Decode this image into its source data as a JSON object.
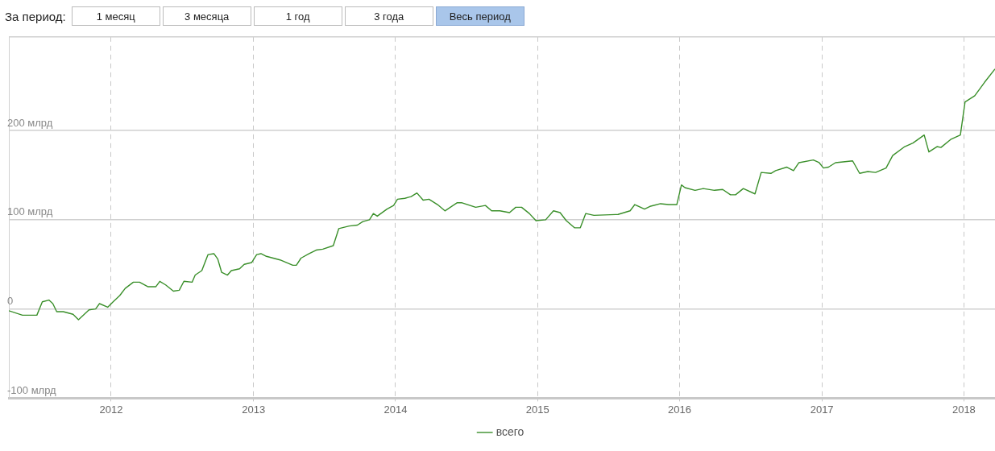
{
  "chart_data": {
    "type": "line",
    "annotations": [
      "За период:",
      "1 месяц",
      "3 месяца",
      "1 год",
      "3 года",
      "Весь период"
    ],
    "xlim": [
      "2011-04-13",
      "2018-03-22"
    ],
    "xticks": [
      "2012",
      "2013",
      "2014",
      "2015",
      "2016",
      "2017",
      "2018"
    ],
    "ylim": [
      -100,
      305
    ],
    "yticks": [
      {
        "value": -100,
        "label": "-100 млрд"
      },
      {
        "value": 0,
        "label": "0"
      },
      {
        "value": 100,
        "label": "100 млрд"
      },
      {
        "value": 200,
        "label": "200 млрд"
      }
    ],
    "grid": true,
    "legend": "bottom",
    "marker": "none",
    "line_style": "solid",
    "series": [
      {
        "name": "всего",
        "color": "#3a8f2a",
        "x": [
          "2011-04-13",
          "2011-05-18",
          "2011-06-24",
          "2011-07-08",
          "2011-07-25",
          "2011-08-04",
          "2011-08-14",
          "2011-08-31",
          "2011-09-25",
          "2011-10-09",
          "2011-11-05",
          "2011-11-22",
          "2011-12-02",
          "2011-12-23",
          "2012-01-06",
          "2012-01-23",
          "2012-02-06",
          "2012-02-27",
          "2012-03-14",
          "2012-04-04",
          "2012-04-25",
          "2012-05-05",
          "2012-05-20",
          "2012-06-09",
          "2012-06-24",
          "2012-07-06",
          "2012-07-27",
          "2012-08-04",
          "2012-08-21",
          "2012-09-06",
          "2012-09-21",
          "2012-10-01",
          "2012-10-11",
          "2012-10-26",
          "2012-11-05",
          "2012-11-26",
          "2012-12-08",
          "2012-12-27",
          "2013-01-09",
          "2013-01-20",
          "2013-02-03",
          "2013-03-10",
          "2013-04-12",
          "2013-04-21",
          "2013-05-03",
          "2013-05-24",
          "2013-06-11",
          "2013-06-28",
          "2013-07-25",
          "2013-08-08",
          "2013-09-04",
          "2013-09-25",
          "2013-10-09",
          "2013-10-26",
          "2013-11-05",
          "2013-11-15",
          "2013-12-10",
          "2013-12-27",
          "2014-01-06",
          "2014-01-25",
          "2014-02-10",
          "2014-02-25",
          "2014-03-13",
          "2014-03-28",
          "2014-04-19",
          "2014-05-08",
          "2014-06-08",
          "2014-06-21",
          "2014-07-26",
          "2014-08-20",
          "2014-09-05",
          "2014-09-26",
          "2014-10-21",
          "2014-11-06",
          "2014-11-21",
          "2014-12-11",
          "2014-12-28",
          "2015-01-22",
          "2015-02-11",
          "2015-02-28",
          "2015-03-16",
          "2015-04-06",
          "2015-04-21",
          "2015-05-05",
          "2015-05-26",
          "2015-07-27",
          "2015-08-27",
          "2015-09-08",
          "2015-10-03",
          "2015-10-17",
          "2015-11-13",
          "2015-12-04",
          "2015-12-25",
          "2016-01-06",
          "2016-01-15",
          "2016-02-10",
          "2016-03-02",
          "2016-03-31",
          "2016-04-21",
          "2016-05-11",
          "2016-05-24",
          "2016-06-13",
          "2016-07-13",
          "2016-07-29",
          "2016-08-23",
          "2016-09-04",
          "2016-10-03",
          "2016-10-20",
          "2016-11-03",
          "2016-12-10",
          "2016-12-25",
          "2017-01-05",
          "2017-01-18",
          "2017-02-05",
          "2017-03-21",
          "2017-04-08",
          "2017-04-29",
          "2017-05-19",
          "2017-06-15",
          "2017-07-02",
          "2017-08-02",
          "2017-08-23",
          "2017-09-21",
          "2017-10-03",
          "2017-10-24",
          "2017-11-03",
          "2017-11-28",
          "2017-12-23",
          "2018-01-04",
          "2018-01-29",
          "2018-02-23",
          "2018-03-22"
        ],
        "values": [
          -2,
          -7,
          -7,
          8,
          10,
          6,
          -3,
          -3,
          -6,
          -12,
          -1,
          0,
          6,
          2,
          8,
          15,
          23,
          30,
          30,
          25,
          25,
          31,
          27,
          20,
          21,
          31,
          30,
          38,
          43,
          61,
          62,
          56,
          41,
          38,
          43,
          45,
          50,
          52,
          61,
          62,
          59,
          55,
          49,
          49,
          57,
          62,
          66,
          67,
          71,
          90,
          93,
          94,
          98,
          100,
          107,
          104,
          112,
          116,
          123,
          124,
          126,
          130,
          122,
          123,
          117,
          110,
          119,
          119,
          114,
          116,
          110,
          110,
          108,
          114,
          114,
          107,
          99,
          100,
          110,
          108,
          99,
          91,
          91,
          107,
          105,
          106,
          110,
          117,
          112,
          115,
          118,
          117,
          117,
          139,
          136,
          133,
          135,
          133,
          134,
          128,
          128,
          135,
          129,
          153,
          152,
          155,
          159,
          155,
          164,
          167,
          164,
          158,
          159,
          164,
          166,
          152,
          154,
          153,
          158,
          172,
          182,
          186,
          195,
          176,
          182,
          181,
          190,
          195,
          232,
          239,
          254,
          269
        ]
      }
    ]
  }
}
